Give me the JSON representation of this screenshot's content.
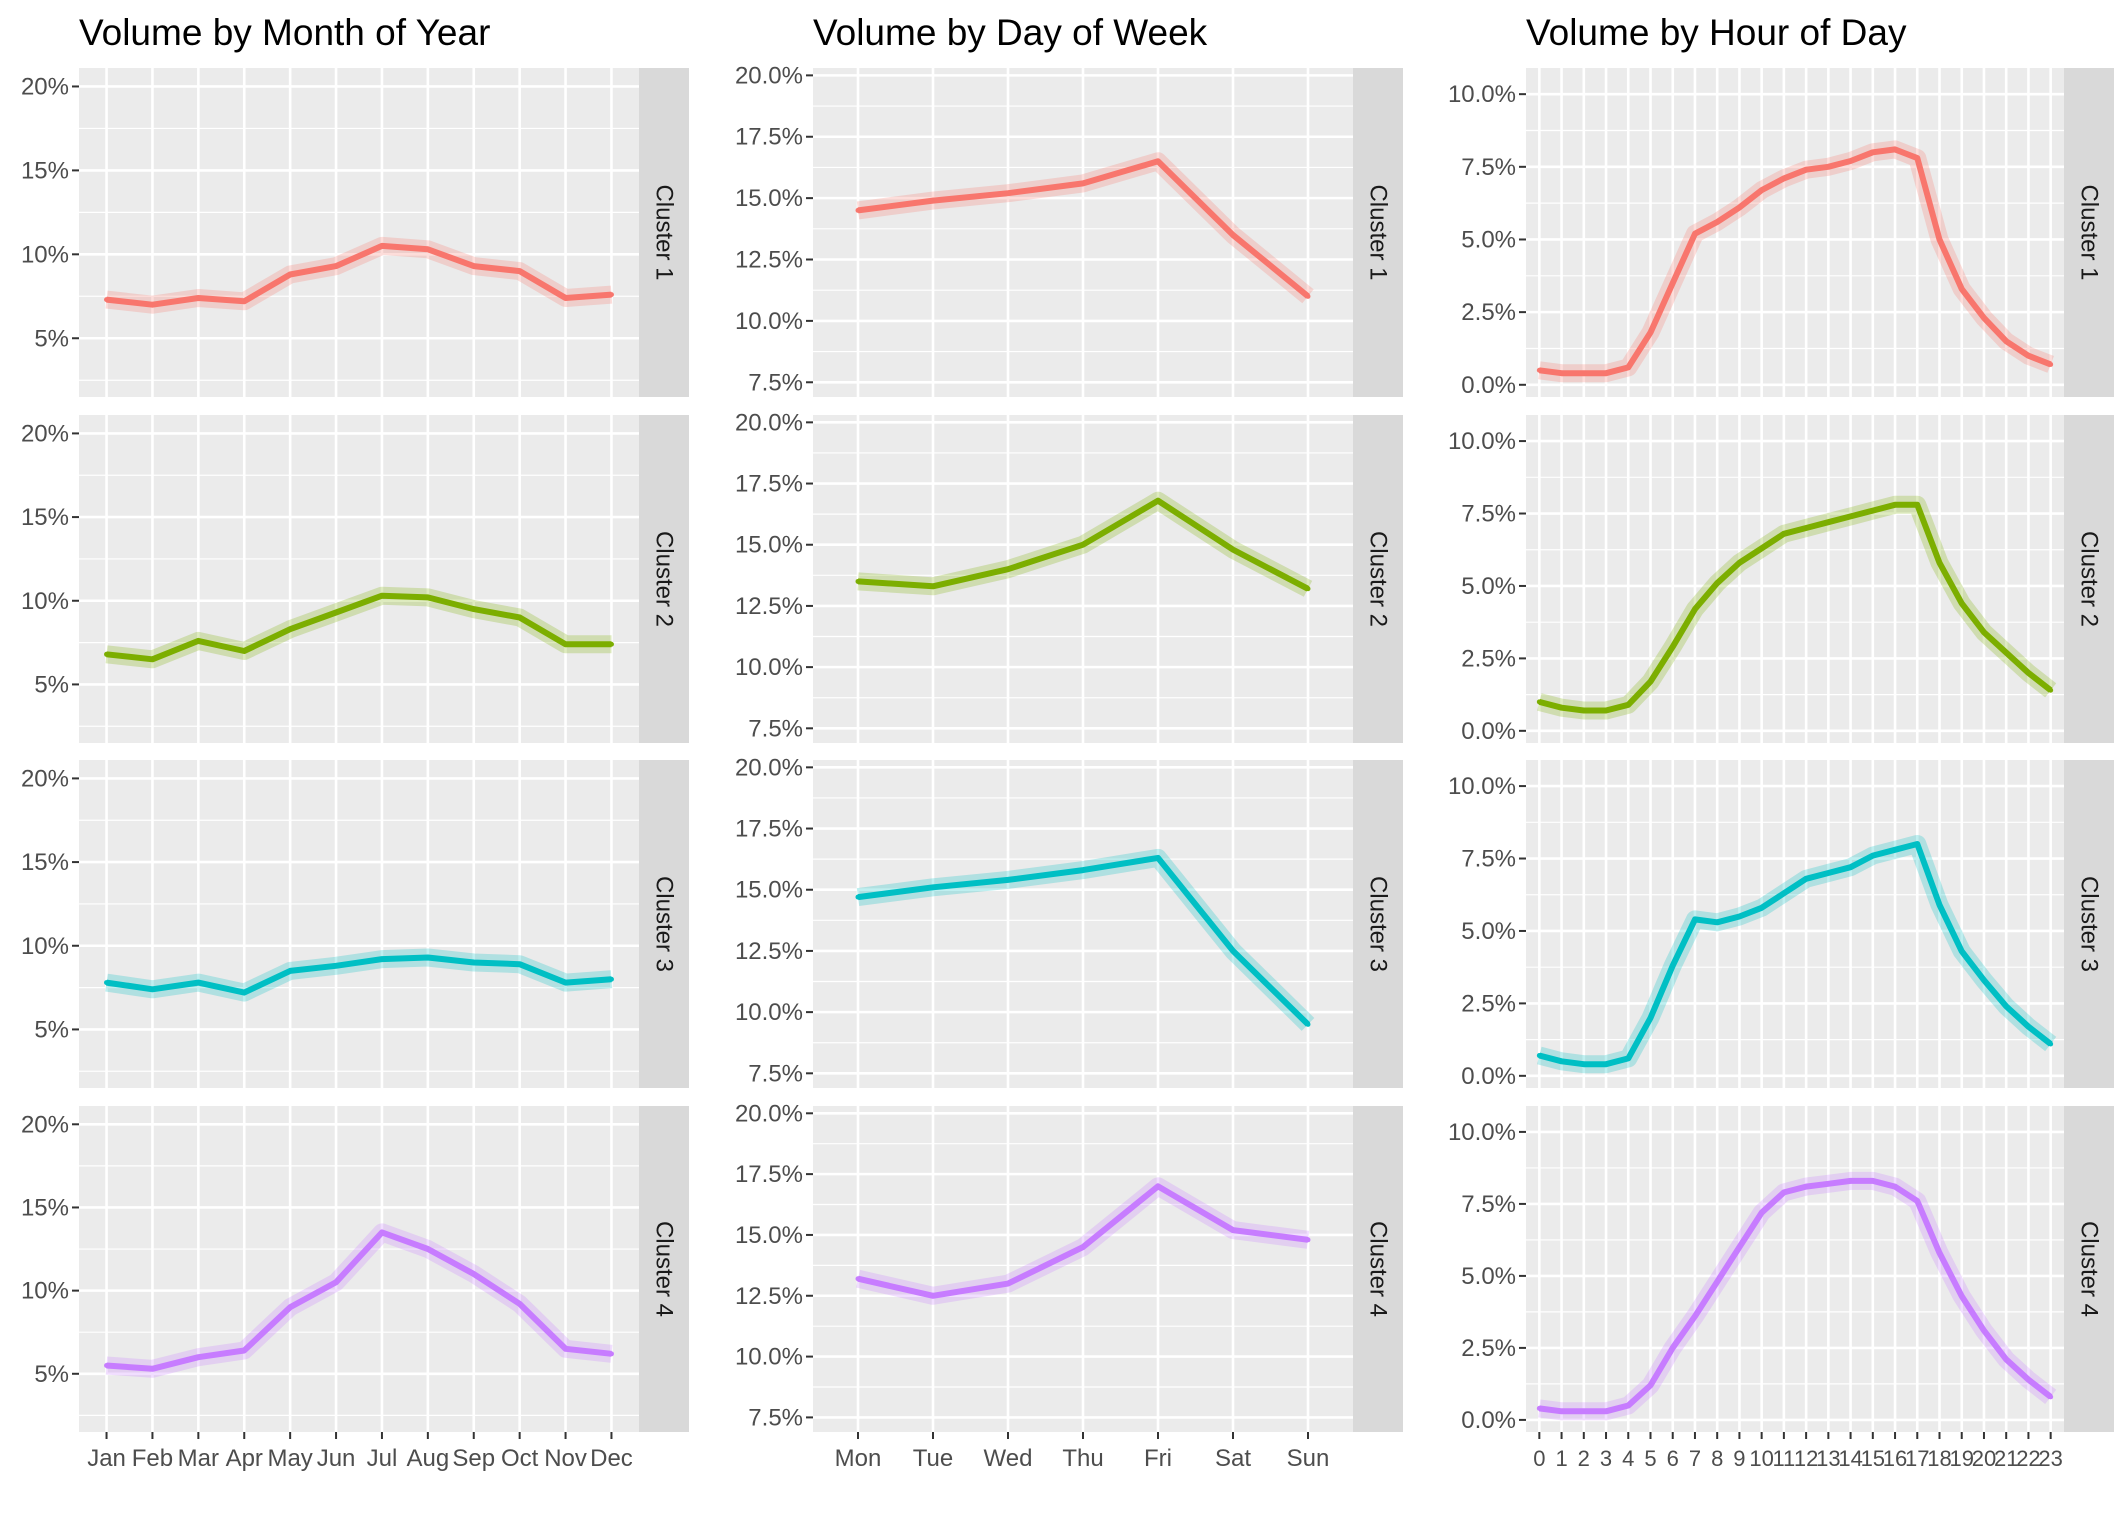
{
  "chart_data": [
    {
      "type": "line",
      "title": "Volume by Month of Year",
      "xlabel": "",
      "ylabel": "",
      "categories": [
        "Jan",
        "Feb",
        "Mar",
        "Apr",
        "May",
        "Jun",
        "Jul",
        "Aug",
        "Sep",
        "Oct",
        "Nov",
        "Dec"
      ],
      "y_ticks": [
        "5%",
        "10%",
        "15%",
        "20%"
      ],
      "y_tick_values": [
        5,
        10,
        15,
        20
      ],
      "ylim": [
        1.5,
        21.1
      ],
      "grid": true,
      "facets": [
        {
          "strip": "Cluster 1",
          "color": "#F8766D",
          "values": [
            7.3,
            7.0,
            7.4,
            7.2,
            8.8,
            9.3,
            10.5,
            10.3,
            9.3,
            9.0,
            7.4,
            7.6
          ]
        },
        {
          "strip": "Cluster 2",
          "color": "#7CAE00",
          "values": [
            6.8,
            6.5,
            7.6,
            7.0,
            8.3,
            9.3,
            10.3,
            10.2,
            9.5,
            9.0,
            7.4,
            7.4
          ]
        },
        {
          "strip": "Cluster 3",
          "color": "#00BFC4",
          "values": [
            7.8,
            7.4,
            7.8,
            7.2,
            8.5,
            8.8,
            9.2,
            9.3,
            9.0,
            8.9,
            7.8,
            8.0
          ]
        },
        {
          "strip": "Cluster 4",
          "color": "#C77CFF",
          "values": [
            5.5,
            5.3,
            6.0,
            6.4,
            9.0,
            10.5,
            13.5,
            12.5,
            11.0,
            9.2,
            6.5,
            6.2
          ]
        }
      ]
    },
    {
      "type": "line",
      "title": "Volume by Day of Week",
      "xlabel": "",
      "ylabel": "",
      "categories": [
        "Mon",
        "Tue",
        "Wed",
        "Thu",
        "Fri",
        "Sat",
        "Sun"
      ],
      "y_ticks": [
        "7.5%",
        "10.0%",
        "12.5%",
        "15.0%",
        "17.5%",
        "20.0%"
      ],
      "y_tick_values": [
        7.5,
        10,
        12.5,
        15,
        17.5,
        20
      ],
      "ylim": [
        6.9,
        20.3
      ],
      "grid": true,
      "facets": [
        {
          "strip": "Cluster 1",
          "color": "#F8766D",
          "values": [
            14.5,
            14.9,
            15.2,
            15.6,
            16.5,
            13.5,
            11.0
          ]
        },
        {
          "strip": "Cluster 2",
          "color": "#7CAE00",
          "values": [
            13.5,
            13.3,
            14.0,
            15.0,
            16.8,
            14.8,
            13.2
          ]
        },
        {
          "strip": "Cluster 3",
          "color": "#00BFC4",
          "values": [
            14.7,
            15.1,
            15.4,
            15.8,
            16.3,
            12.5,
            9.5
          ]
        },
        {
          "strip": "Cluster 4",
          "color": "#C77CFF",
          "values": [
            13.2,
            12.5,
            13.0,
            14.5,
            17.0,
            15.2,
            14.8
          ]
        }
      ]
    },
    {
      "type": "line",
      "title": "Volume by Hour of Day",
      "xlabel": "",
      "ylabel": "",
      "categories": [
        "0",
        "1",
        "2",
        "3",
        "4",
        "5",
        "6",
        "7",
        "8",
        "9",
        "10",
        "11",
        "12",
        "13",
        "14",
        "15",
        "16",
        "17",
        "18",
        "19",
        "20",
        "21",
        "22",
        "23"
      ],
      "y_ticks": [
        "0.0%",
        "2.5%",
        "5.0%",
        "7.5%",
        "10.0%"
      ],
      "y_tick_values": [
        0,
        2.5,
        5,
        7.5,
        10
      ],
      "ylim": [
        -0.42,
        10.9
      ],
      "grid": true,
      "facets": [
        {
          "strip": "Cluster 1",
          "color": "#F8766D",
          "values": [
            0.5,
            0.4,
            0.4,
            0.4,
            0.6,
            1.8,
            3.5,
            5.2,
            5.6,
            6.1,
            6.7,
            7.1,
            7.4,
            7.5,
            7.7,
            8.0,
            8.1,
            7.8,
            5.0,
            3.3,
            2.3,
            1.5,
            1.0,
            0.7
          ]
        },
        {
          "strip": "Cluster 2",
          "color": "#7CAE00",
          "values": [
            1.0,
            0.8,
            0.7,
            0.7,
            0.9,
            1.7,
            2.9,
            4.2,
            5.1,
            5.8,
            6.3,
            6.8,
            7.0,
            7.2,
            7.4,
            7.6,
            7.8,
            7.8,
            5.8,
            4.4,
            3.4,
            2.7,
            2.0,
            1.4
          ]
        },
        {
          "strip": "Cluster 3",
          "color": "#00BFC4",
          "values": [
            0.7,
            0.5,
            0.4,
            0.4,
            0.6,
            2.0,
            3.8,
            5.4,
            5.3,
            5.5,
            5.8,
            6.3,
            6.8,
            7.0,
            7.2,
            7.6,
            7.8,
            8.0,
            5.9,
            4.3,
            3.3,
            2.4,
            1.7,
            1.1
          ]
        },
        {
          "strip": "Cluster 4",
          "color": "#C77CFF",
          "values": [
            0.4,
            0.3,
            0.3,
            0.3,
            0.5,
            1.2,
            2.5,
            3.6,
            4.8,
            6.0,
            7.2,
            7.9,
            8.1,
            8.2,
            8.3,
            8.3,
            8.1,
            7.6,
            5.8,
            4.3,
            3.1,
            2.1,
            1.4,
            0.8
          ]
        }
      ]
    }
  ]
}
